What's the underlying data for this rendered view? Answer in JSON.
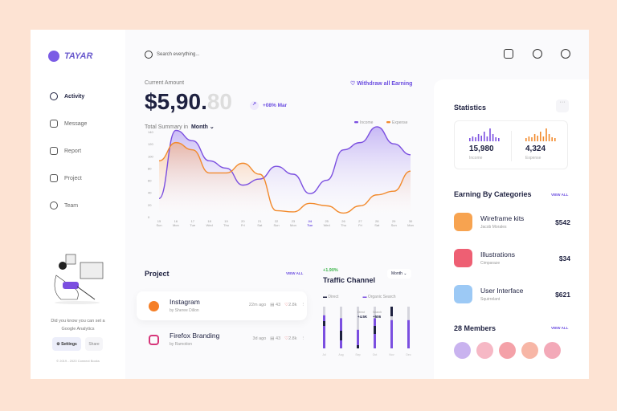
{
  "brand": "TAYAR",
  "nav": [
    {
      "label": "Activity",
      "icon": "activity-icon"
    },
    {
      "label": "Message",
      "icon": "message-icon"
    },
    {
      "label": "Report",
      "icon": "calendar-icon"
    },
    {
      "label": "Project",
      "icon": "project-icon"
    },
    {
      "label": "Team",
      "icon": "user-icon"
    }
  ],
  "promo": {
    "line1": "Did you know you can set a",
    "line2": "Google Analytics",
    "settings": "Settings",
    "share": "Share",
    "copyright": "© 2019 - 2020 Connect Books"
  },
  "search": {
    "placeholder": "Search everything..."
  },
  "amount": {
    "label": "Current Amount",
    "whole": "$5,90.",
    "cents": "80",
    "change": "+08% Mar",
    "withdraw": "Withdraw all Earning"
  },
  "summary": {
    "label": "Total Summary in",
    "period": "Month"
  },
  "chart_data": {
    "type": "area",
    "x": [
      "15 Sun",
      "16 Mon",
      "17 Tue",
      "18 Wed",
      "19 Thu",
      "20 Fri",
      "21 Sat",
      "22 Sun",
      "23 Mon",
      "24 Tue",
      "25 Wed",
      "26 Thu",
      "27 Fri",
      "28 Sat",
      "29 Sun",
      "30 Mon"
    ],
    "ylim": [
      0,
      140
    ],
    "yticks": [
      0,
      20,
      40,
      60,
      80,
      100,
      120,
      140
    ],
    "legend": "top-right",
    "highlight": "24 Tue",
    "series": [
      {
        "name": "Income",
        "color": "#7b4fe0",
        "values": [
          30,
          142,
          125,
          92,
          80,
          52,
          62,
          83,
          70,
          38,
          60,
          110,
          122,
          148,
          120,
          102
        ]
      },
      {
        "name": "Expense",
        "color": "#f28a2c",
        "values": [
          92,
          122,
          110,
          72,
          72,
          88,
          70,
          10,
          8,
          22,
          18,
          6,
          18,
          36,
          42,
          75
        ]
      }
    ]
  },
  "project": {
    "title": "Project",
    "view_all": "VIEW ALL",
    "items": [
      {
        "name": "Instagram",
        "by": "by Sheree Dillon",
        "time": "22m ago",
        "comments": "43",
        "likes": "2.8k"
      },
      {
        "name": "Firefox Branding",
        "by": "by Ramotion",
        "time": "3d ago",
        "comments": "43",
        "likes": "2.8k"
      }
    ]
  },
  "traffic": {
    "change": "+1.90%",
    "title": "Traffic Channel",
    "period": "Month",
    "legend": [
      "Direct",
      "Organic Search"
    ],
    "tooltip": {
      "direct_label": "Direct",
      "direct": "+4.5K",
      "search_label": "Search",
      "search": "+506"
    },
    "months": [
      "Jul",
      "Aug",
      "Sep",
      "Oct",
      "Nov",
      "Dec"
    ],
    "direct": [
      [
        45,
        60
      ],
      [
        75,
        105
      ],
      [
        120,
        130
      ],
      [
        60,
        85
      ],
      [
        0,
        30
      ],
      [
        0,
        0
      ]
    ],
    "organic": [
      0,
      60,
      0,
      0,
      0,
      0
    ],
    "purple_top": [
      45,
      60,
      120,
      60,
      70,
      70
    ]
  },
  "stats": {
    "title": "Statistics",
    "income": "15,980",
    "income_label": "Income",
    "expense": "4,324",
    "expense_label": "Expense"
  },
  "categories": {
    "title": "Earning By Categories",
    "view_all": "VIEW ALL",
    "items": [
      {
        "name": "Wireframe kits",
        "by": "Jacob Morales",
        "price": "$542",
        "color": "#f7a350"
      },
      {
        "name": "Illustrations",
        "by": "Cimparaze",
        "price": "$34",
        "color": "#ee5f73"
      },
      {
        "name": "User Interface",
        "by": "Squirrelant",
        "price": "$621",
        "color": "#9cc9f5"
      }
    ]
  },
  "members": {
    "title": "28 Members",
    "view_all": "VIEW ALL"
  }
}
